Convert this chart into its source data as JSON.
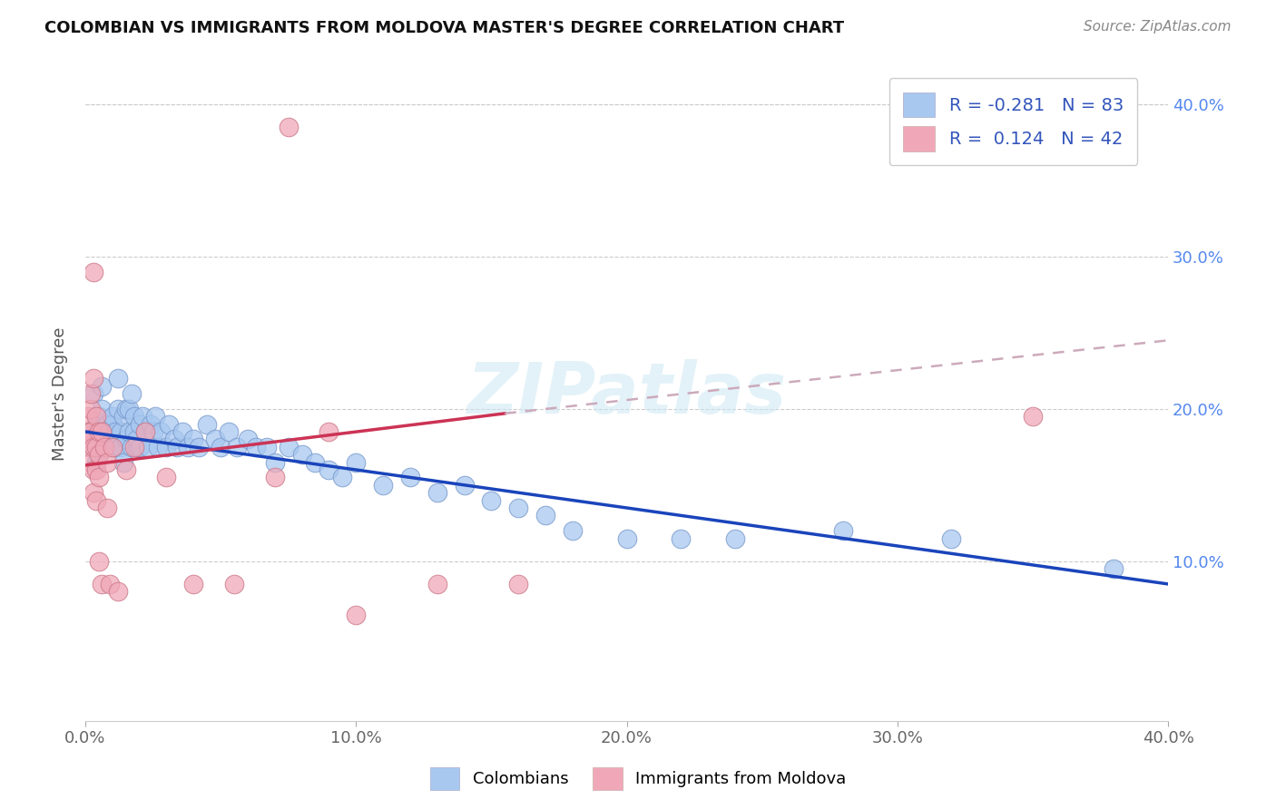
{
  "title": "COLOMBIAN VS IMMIGRANTS FROM MOLDOVA MASTER'S DEGREE CORRELATION CHART",
  "source": "Source: ZipAtlas.com",
  "ylabel": "Master's Degree",
  "xlim": [
    0.0,
    0.4
  ],
  "ylim": [
    -0.005,
    0.425
  ],
  "xtick_labels": [
    "0.0%",
    "10.0%",
    "20.0%",
    "30.0%",
    "40.0%"
  ],
  "xtick_vals": [
    0.0,
    0.1,
    0.2,
    0.3,
    0.4
  ],
  "ytick_vals_right": [
    0.1,
    0.2,
    0.3,
    0.4
  ],
  "ytick_labels_right": [
    "10.0%",
    "20.0%",
    "30.0%",
    "40.0%"
  ],
  "watermark": "ZIPatlas",
  "legend_R1": "-0.281",
  "legend_N1": "83",
  "legend_R2": "0.124",
  "legend_N2": "42",
  "blue_color": "#a8c8f0",
  "pink_color": "#f0a8b8",
  "blue_line_color": "#1a44bb",
  "pink_line_color": "#cc3355",
  "pink_dash_color": "#ccaabb",
  "colombians_x": [
    0.002,
    0.003,
    0.003,
    0.004,
    0.004,
    0.005,
    0.005,
    0.006,
    0.006,
    0.007,
    0.007,
    0.008,
    0.008,
    0.009,
    0.009,
    0.01,
    0.01,
    0.01,
    0.011,
    0.011,
    0.012,
    0.012,
    0.013,
    0.013,
    0.014,
    0.014,
    0.015,
    0.015,
    0.016,
    0.016,
    0.017,
    0.017,
    0.018,
    0.018,
    0.019,
    0.019,
    0.02,
    0.02,
    0.021,
    0.022,
    0.023,
    0.024,
    0.025,
    0.026,
    0.027,
    0.028,
    0.03,
    0.031,
    0.033,
    0.034,
    0.036,
    0.038,
    0.04,
    0.042,
    0.045,
    0.048,
    0.05,
    0.053,
    0.056,
    0.06,
    0.063,
    0.067,
    0.07,
    0.075,
    0.08,
    0.085,
    0.09,
    0.095,
    0.1,
    0.11,
    0.12,
    0.13,
    0.14,
    0.15,
    0.16,
    0.17,
    0.18,
    0.2,
    0.22,
    0.24,
    0.28,
    0.32,
    0.38
  ],
  "colombians_y": [
    0.185,
    0.175,
    0.21,
    0.19,
    0.165,
    0.195,
    0.17,
    0.2,
    0.215,
    0.185,
    0.175,
    0.19,
    0.18,
    0.175,
    0.185,
    0.19,
    0.18,
    0.195,
    0.185,
    0.175,
    0.22,
    0.2,
    0.185,
    0.175,
    0.195,
    0.165,
    0.2,
    0.18,
    0.185,
    0.2,
    0.21,
    0.175,
    0.195,
    0.185,
    0.175,
    0.18,
    0.19,
    0.175,
    0.195,
    0.185,
    0.175,
    0.19,
    0.185,
    0.195,
    0.175,
    0.185,
    0.175,
    0.19,
    0.18,
    0.175,
    0.185,
    0.175,
    0.18,
    0.175,
    0.19,
    0.18,
    0.175,
    0.185,
    0.175,
    0.18,
    0.175,
    0.175,
    0.165,
    0.175,
    0.17,
    0.165,
    0.16,
    0.155,
    0.165,
    0.15,
    0.155,
    0.145,
    0.15,
    0.14,
    0.135,
    0.13,
    0.12,
    0.115,
    0.115,
    0.115,
    0.12,
    0.115,
    0.095
  ],
  "moldova_x": [
    0.001,
    0.001,
    0.001,
    0.002,
    0.002,
    0.002,
    0.002,
    0.002,
    0.003,
    0.003,
    0.003,
    0.003,
    0.003,
    0.004,
    0.004,
    0.004,
    0.004,
    0.005,
    0.005,
    0.005,
    0.005,
    0.006,
    0.006,
    0.007,
    0.008,
    0.008,
    0.009,
    0.01,
    0.012,
    0.015,
    0.018,
    0.022,
    0.03,
    0.04,
    0.055,
    0.07,
    0.075,
    0.09,
    0.1,
    0.13,
    0.16,
    0.35
  ],
  "moldova_y": [
    0.195,
    0.185,
    0.175,
    0.2,
    0.21,
    0.185,
    0.165,
    0.18,
    0.22,
    0.29,
    0.175,
    0.16,
    0.145,
    0.195,
    0.175,
    0.16,
    0.14,
    0.185,
    0.17,
    0.155,
    0.1,
    0.185,
    0.085,
    0.175,
    0.165,
    0.135,
    0.085,
    0.175,
    0.08,
    0.16,
    0.175,
    0.185,
    0.155,
    0.085,
    0.085,
    0.155,
    0.385,
    0.185,
    0.065,
    0.085,
    0.085,
    0.195
  ]
}
